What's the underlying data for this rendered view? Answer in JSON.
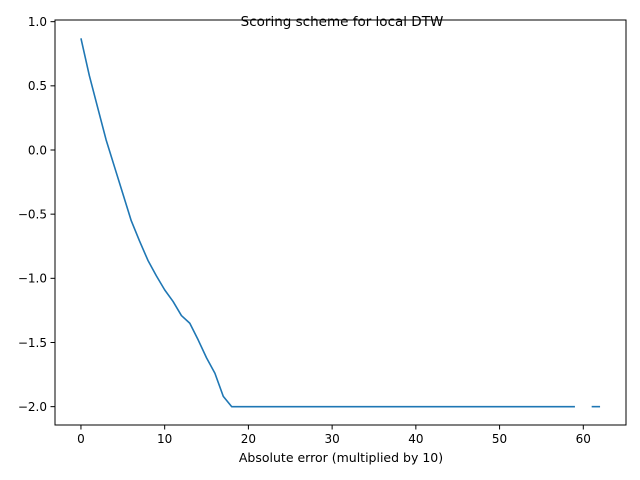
{
  "chart_data": {
    "type": "line",
    "title": "Scoring scheme for local DTW",
    "xlabel": "Absolute error (multiplied by 10)",
    "ylabel": "",
    "xlim": [
      -3.1,
      65.1
    ],
    "ylim": [
      -2.143,
      1.013
    ],
    "x_ticks": [
      0,
      10,
      20,
      30,
      40,
      50,
      60
    ],
    "x_tick_labels": [
      "0",
      "10",
      "20",
      "30",
      "40",
      "50",
      "60"
    ],
    "y_ticks": [
      -2.0,
      -1.5,
      -1.0,
      -0.5,
      0.0,
      0.5,
      1.0
    ],
    "y_tick_labels": [
      "−2.0",
      "−1.5",
      "−1.0",
      "−0.5",
      "0.0",
      "0.5",
      "1.0"
    ],
    "grid": false,
    "series": [
      {
        "color": "#1f77b4",
        "segments": [
          {
            "x": [
              0,
              1,
              2,
              3,
              4,
              5,
              6,
              7,
              8,
              9,
              10,
              11,
              12,
              13,
              14,
              15,
              16,
              17,
              18,
              19,
              20,
              21,
              22,
              23,
              24,
              25,
              26,
              27,
              28,
              29,
              30,
              31,
              32,
              33,
              34,
              35,
              36,
              37,
              38,
              39,
              40,
              41,
              42,
              43,
              44,
              45,
              46,
              47,
              48,
              49,
              50,
              51,
              52,
              53,
              54,
              55,
              56,
              57,
              58,
              59
            ],
            "values": [
              0.87,
              0.58,
              0.33,
              0.08,
              -0.13,
              -0.34,
              -0.55,
              -0.71,
              -0.86,
              -0.98,
              -1.09,
              -1.18,
              -1.29,
              -1.35,
              -1.48,
              -1.62,
              -1.74,
              -1.92,
              -2.0,
              -2.0,
              -2.0,
              -2.0,
              -2.0,
              -2.0,
              -2.0,
              -2.0,
              -2.0,
              -2.0,
              -2.0,
              -2.0,
              -2.0,
              -2.0,
              -2.0,
              -2.0,
              -2.0,
              -2.0,
              -2.0,
              -2.0,
              -2.0,
              -2.0,
              -2.0,
              -2.0,
              -2.0,
              -2.0,
              -2.0,
              -2.0,
              -2.0,
              -2.0,
              -2.0,
              -2.0,
              -2.0,
              -2.0,
              -2.0,
              -2.0,
              -2.0,
              -2.0,
              -2.0,
              -2.0,
              -2.0,
              -2.0
            ]
          },
          {
            "x": [
              61,
              62
            ],
            "values": [
              -2.0,
              -2.0
            ]
          }
        ]
      }
    ]
  }
}
